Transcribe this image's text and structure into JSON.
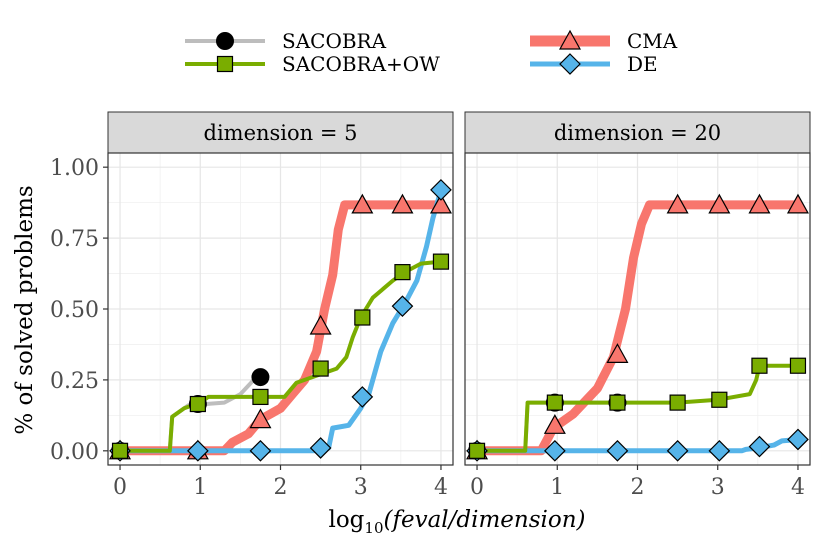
{
  "chart_data": {
    "type": "line",
    "ylabel": "% of solved problems",
    "xlabel_parts": [
      "log",
      "10",
      "(feval/dimension)"
    ],
    "x_ticks": [
      0,
      1,
      2,
      3,
      4
    ],
    "y_ticks": [
      "0.00",
      "0.25",
      "0.50",
      "0.75",
      "1.00"
    ],
    "xlim": [
      -0.15,
      4.15
    ],
    "ylim": [
      -0.05,
      1.05
    ],
    "grid": true,
    "legend_position": "top",
    "legend": [
      {
        "name": "SACOBRA",
        "color": "#bdbdbd",
        "marker": "circle",
        "marker_fill": "#000000"
      },
      {
        "name": "SACOBRA+OW",
        "color": "#7aad00",
        "marker": "square",
        "marker_fill": "#7aad00"
      },
      {
        "name": "CMA",
        "color": "#f8766d",
        "marker": "triangle",
        "marker_fill": "#f8766d"
      },
      {
        "name": "DE",
        "color": "#56b4e9",
        "marker": "diamond",
        "marker_fill": "#56b4e9"
      }
    ],
    "panels": [
      {
        "strip": "dimension = 5",
        "series": [
          {
            "name": "SACOBRA",
            "points": [
              [
                0,
                0.0
              ],
              [
                0.62,
                0.0
              ],
              [
                0.65,
                0.12
              ],
              [
                0.75,
                0.14
              ],
              [
                0.85,
                0.16
              ],
              [
                1.3,
                0.17
              ],
              [
                1.5,
                0.2
              ],
              [
                1.6,
                0.23
              ],
              [
                1.7,
                0.26
              ]
            ],
            "markers": [
              [
                0,
                0.0
              ],
              [
                0.97,
                0.165
              ],
              [
                1.75,
                0.26
              ]
            ]
          },
          {
            "name": "SACOBRA+OW",
            "points": [
              [
                0,
                0.0
              ],
              [
                0.62,
                0.0
              ],
              [
                0.65,
                0.12
              ],
              [
                0.8,
                0.15
              ],
              [
                1.0,
                0.17
              ],
              [
                1.1,
                0.19
              ],
              [
                1.7,
                0.19
              ],
              [
                2.05,
                0.19
              ],
              [
                2.2,
                0.24
              ],
              [
                2.5,
                0.27
              ],
              [
                2.7,
                0.29
              ],
              [
                2.82,
                0.33
              ],
              [
                2.9,
                0.4
              ],
              [
                3.0,
                0.47
              ],
              [
                3.15,
                0.54
              ],
              [
                3.4,
                0.6
              ],
              [
                3.55,
                0.63
              ],
              [
                3.75,
                0.66
              ],
              [
                4.0,
                0.667
              ]
            ],
            "markers": [
              [
                0,
                0.0
              ],
              [
                0.97,
                0.165
              ],
              [
                1.75,
                0.19
              ],
              [
                2.5,
                0.29
              ],
              [
                3.02,
                0.47
              ],
              [
                3.52,
                0.63
              ],
              [
                4.0,
                0.667
              ]
            ]
          },
          {
            "name": "CMA",
            "points": [
              [
                0,
                0.0
              ],
              [
                1.3,
                0.0
              ],
              [
                1.4,
                0.03
              ],
              [
                1.6,
                0.06
              ],
              [
                1.75,
                0.11
              ],
              [
                2.0,
                0.15
              ],
              [
                2.15,
                0.2
              ],
              [
                2.3,
                0.25
              ],
              [
                2.45,
                0.35
              ],
              [
                2.55,
                0.5
              ],
              [
                2.65,
                0.62
              ],
              [
                2.72,
                0.78
              ],
              [
                2.8,
                0.867
              ],
              [
                4.0,
                0.867
              ]
            ],
            "markers": [
              [
                0,
                0.0
              ],
              [
                0.97,
                0.0
              ],
              [
                1.75,
                0.11
              ],
              [
                2.5,
                0.44
              ],
              [
                3.02,
                0.867
              ],
              [
                3.52,
                0.867
              ],
              [
                4.0,
                0.867
              ]
            ]
          },
          {
            "name": "DE",
            "points": [
              [
                0,
                0.0
              ],
              [
                2.5,
                0.0
              ],
              [
                2.6,
                0.01
              ],
              [
                2.65,
                0.08
              ],
              [
                2.85,
                0.09
              ],
              [
                3.0,
                0.15
              ],
              [
                3.1,
                0.2
              ],
              [
                3.25,
                0.35
              ],
              [
                3.4,
                0.45
              ],
              [
                3.55,
                0.52
              ],
              [
                3.7,
                0.6
              ],
              [
                3.82,
                0.72
              ],
              [
                3.9,
                0.82
              ],
              [
                4.0,
                0.92
              ]
            ],
            "markers": [
              [
                0,
                0.0
              ],
              [
                0.97,
                0.0
              ],
              [
                1.75,
                0.0
              ],
              [
                2.5,
                0.01
              ],
              [
                3.02,
                0.19
              ],
              [
                3.52,
                0.51
              ],
              [
                4.0,
                0.92
              ]
            ]
          }
        ]
      },
      {
        "strip": "dimension = 20",
        "series": [
          {
            "name": "SACOBRA",
            "points": [
              [
                0,
                0.0
              ],
              [
                0.6,
                0.0
              ],
              [
                0.63,
                0.17
              ],
              [
                1.75,
                0.17
              ]
            ],
            "markers": [
              [
                0,
                0.0
              ],
              [
                0.97,
                0.17
              ],
              [
                1.75,
                0.17
              ]
            ]
          },
          {
            "name": "SACOBRA+OW",
            "points": [
              [
                0,
                0.0
              ],
              [
                0.6,
                0.0
              ],
              [
                0.63,
                0.17
              ],
              [
                2.5,
                0.17
              ],
              [
                3.0,
                0.18
              ],
              [
                3.4,
                0.2
              ],
              [
                3.48,
                0.25
              ],
              [
                3.52,
                0.3
              ],
              [
                4.0,
                0.3
              ]
            ],
            "markers": [
              [
                0,
                0.0
              ],
              [
                0.97,
                0.17
              ],
              [
                1.75,
                0.17
              ],
              [
                2.5,
                0.17
              ],
              [
                3.02,
                0.18
              ],
              [
                3.52,
                0.3
              ],
              [
                4.0,
                0.3
              ]
            ]
          },
          {
            "name": "CMA",
            "points": [
              [
                0,
                0.0
              ],
              [
                0.8,
                0.0
              ],
              [
                0.95,
                0.08
              ],
              [
                1.2,
                0.13
              ],
              [
                1.5,
                0.22
              ],
              [
                1.7,
                0.33
              ],
              [
                1.85,
                0.5
              ],
              [
                1.95,
                0.68
              ],
              [
                2.05,
                0.8
              ],
              [
                2.15,
                0.867
              ],
              [
                4.0,
                0.867
              ]
            ],
            "markers": [
              [
                0,
                0.0
              ],
              [
                0.97,
                0.09
              ],
              [
                1.75,
                0.34
              ],
              [
                2.5,
                0.867
              ],
              [
                3.02,
                0.867
              ],
              [
                3.52,
                0.867
              ],
              [
                4.0,
                0.867
              ]
            ]
          },
          {
            "name": "DE",
            "points": [
              [
                0,
                0.0
              ],
              [
                3.3,
                0.0
              ],
              [
                3.35,
                0.005
              ],
              [
                3.5,
                0.01
              ],
              [
                3.7,
                0.02
              ],
              [
                3.8,
                0.035
              ],
              [
                4.0,
                0.04
              ]
            ],
            "markers": [
              [
                0,
                0.0
              ],
              [
                0.97,
                0.0
              ],
              [
                1.75,
                0.0
              ],
              [
                2.5,
                0.0
              ],
              [
                3.02,
                0.0
              ],
              [
                3.52,
                0.015
              ],
              [
                4.0,
                0.04
              ]
            ]
          }
        ]
      }
    ]
  }
}
